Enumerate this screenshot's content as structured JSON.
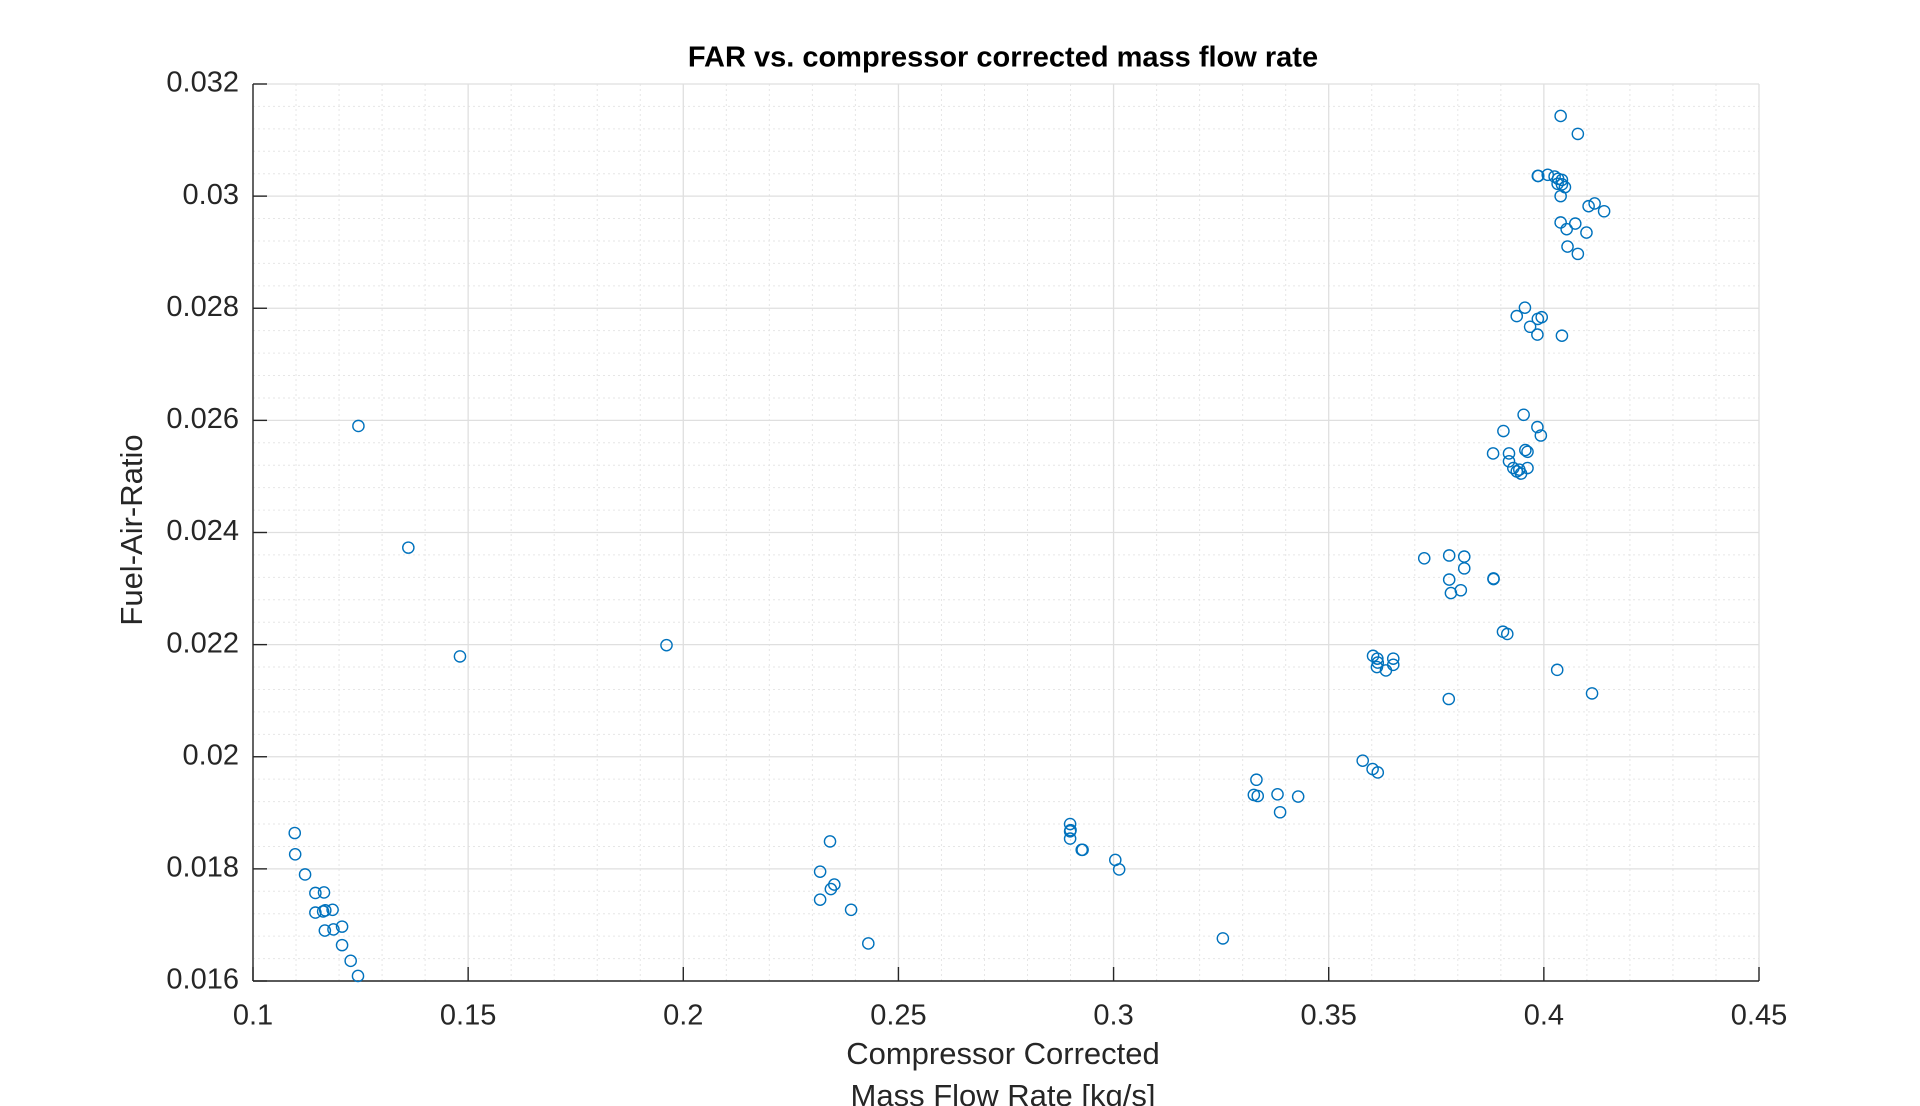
{
  "chart_data": {
    "type": "scatter",
    "title": "FAR vs. compressor corrected mass flow rate",
    "xlabel_lines": [
      "Compressor Corrected",
      "Mass Flow Rate [kg/s]"
    ],
    "ylabel": "Fuel-Air-Ratio",
    "xlim": [
      0.1,
      0.45
    ],
    "ylim": [
      0.016,
      0.032
    ],
    "xticks": [
      0.1,
      0.15,
      0.2,
      0.25,
      0.3,
      0.35,
      0.4,
      0.45
    ],
    "xtick_labels": [
      "0.1",
      "0.15",
      "0.2",
      "0.25",
      "0.3",
      "0.35",
      "0.4",
      "0.45"
    ],
    "yticks": [
      0.016,
      0.018,
      0.02,
      0.022,
      0.024,
      0.026,
      0.028,
      0.03,
      0.032
    ],
    "ytick_labels": [
      "0.016",
      "0.018",
      "0.02",
      "0.022",
      "0.024",
      "0.026",
      "0.028",
      "0.03",
      "0.032"
    ],
    "grid": true,
    "minor_grid": true,
    "marker": "circle-open",
    "color": "#0072bd",
    "points": [
      [
        0.1097,
        0.01864
      ],
      [
        0.1098,
        0.01826
      ],
      [
        0.1121,
        0.0179
      ],
      [
        0.1145,
        0.01757
      ],
      [
        0.1165,
        0.01758
      ],
      [
        0.1145,
        0.01722
      ],
      [
        0.1163,
        0.01724
      ],
      [
        0.1168,
        0.01726
      ],
      [
        0.1185,
        0.01727
      ],
      [
        0.1167,
        0.0169
      ],
      [
        0.1187,
        0.01692
      ],
      [
        0.1207,
        0.01697
      ],
      [
        0.1207,
        0.01664
      ],
      [
        0.1227,
        0.01636
      ],
      [
        0.1244,
        0.01609
      ],
      [
        0.1245,
        0.0259
      ],
      [
        0.1361,
        0.02373
      ],
      [
        0.1481,
        0.02179
      ],
      [
        0.1961,
        0.02199
      ],
      [
        0.2341,
        0.01849
      ],
      [
        0.2318,
        0.01795
      ],
      [
        0.2351,
        0.01772
      ],
      [
        0.2343,
        0.01764
      ],
      [
        0.2318,
        0.01745
      ],
      [
        0.239,
        0.01727
      ],
      [
        0.243,
        0.01667
      ],
      [
        0.2899,
        0.0188
      ],
      [
        0.29,
        0.01869
      ],
      [
        0.2899,
        0.01867
      ],
      [
        0.2899,
        0.01854
      ],
      [
        0.2926,
        0.01834
      ],
      [
        0.2928,
        0.01834
      ],
      [
        0.3004,
        0.01816
      ],
      [
        0.3013,
        0.01799
      ],
      [
        0.3254,
        0.01676
      ],
      [
        0.3332,
        0.01959
      ],
      [
        0.3326,
        0.01932
      ],
      [
        0.3335,
        0.0193
      ],
      [
        0.3381,
        0.01933
      ],
      [
        0.3387,
        0.01901
      ],
      [
        0.3429,
        0.01929
      ],
      [
        0.3579,
        0.01993
      ],
      [
        0.3602,
        0.01978
      ],
      [
        0.3614,
        0.01972
      ],
      [
        0.3603,
        0.0218
      ],
      [
        0.3613,
        0.02175
      ],
      [
        0.3614,
        0.02168
      ],
      [
        0.3633,
        0.02154
      ],
      [
        0.365,
        0.02175
      ],
      [
        0.365,
        0.02164
      ],
      [
        0.3612,
        0.0216
      ],
      [
        0.3722,
        0.02354
      ],
      [
        0.378,
        0.02359
      ],
      [
        0.378,
        0.02316
      ],
      [
        0.3784,
        0.02292
      ],
      [
        0.3807,
        0.02297
      ],
      [
        0.3815,
        0.02357
      ],
      [
        0.3815,
        0.02336
      ],
      [
        0.3883,
        0.02317
      ],
      [
        0.3883,
        0.02318
      ],
      [
        0.3905,
        0.02223
      ],
      [
        0.3915,
        0.02219
      ],
      [
        0.3779,
        0.02103
      ],
      [
        0.4031,
        0.02155
      ],
      [
        0.4112,
        0.02113
      ],
      [
        0.3882,
        0.02541
      ],
      [
        0.3906,
        0.02581
      ],
      [
        0.3919,
        0.02541
      ],
      [
        0.3919,
        0.02527
      ],
      [
        0.3929,
        0.02515
      ],
      [
        0.3937,
        0.02509
      ],
      [
        0.3947,
        0.02505
      ],
      [
        0.3943,
        0.02512
      ],
      [
        0.3953,
        0.0261
      ],
      [
        0.3957,
        0.02547
      ],
      [
        0.3962,
        0.02544
      ],
      [
        0.3962,
        0.02515
      ],
      [
        0.3985,
        0.02588
      ],
      [
        0.3993,
        0.02573
      ],
      [
        0.3937,
        0.02786
      ],
      [
        0.3956,
        0.02801
      ],
      [
        0.3968,
        0.02767
      ],
      [
        0.3986,
        0.02781
      ],
      [
        0.3995,
        0.02784
      ],
      [
        0.3985,
        0.02753
      ],
      [
        0.4042,
        0.02751
      ],
      [
        0.4039,
        0.03143
      ],
      [
        0.4079,
        0.03111
      ],
      [
        0.3986,
        0.03036
      ],
      [
        0.3987,
        0.03036
      ],
      [
        0.4009,
        0.03038
      ],
      [
        0.4025,
        0.03035
      ],
      [
        0.4033,
        0.03031
      ],
      [
        0.4032,
        0.03022
      ],
      [
        0.4042,
        0.03029
      ],
      [
        0.4042,
        0.03021
      ],
      [
        0.4049,
        0.03016
      ],
      [
        0.4039,
        0.03
      ],
      [
        0.4039,
        0.02953
      ],
      [
        0.4053,
        0.02941
      ],
      [
        0.4073,
        0.02951
      ],
      [
        0.4099,
        0.02935
      ],
      [
        0.4104,
        0.02982
      ],
      [
        0.4118,
        0.02987
      ],
      [
        0.414,
        0.02973
      ],
      [
        0.4055,
        0.0291
      ],
      [
        0.4079,
        0.02897
      ]
    ]
  }
}
